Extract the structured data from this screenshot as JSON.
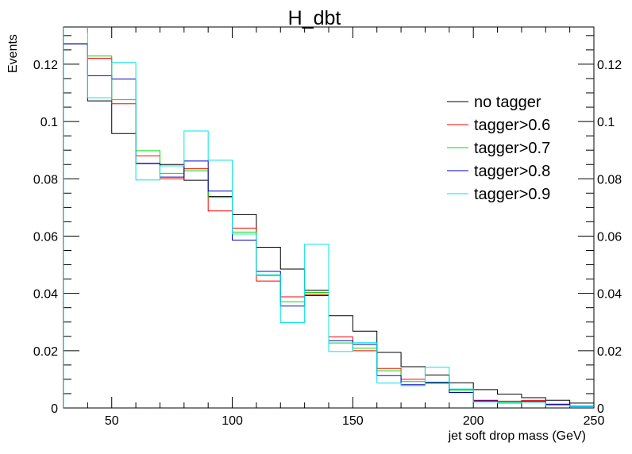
{
  "chart_data": {
    "type": "histogram",
    "title": "H_dbt",
    "xlabel": "jet soft drop mass (GeV)",
    "ylabel": "Events",
    "xlim": [
      30,
      250
    ],
    "ylim": [
      0,
      0.133
    ],
    "x_ticks": [
      50,
      100,
      150,
      200,
      250
    ],
    "y_ticks": [
      0,
      0.02,
      0.04,
      0.06,
      0.08,
      0.1,
      0.12
    ],
    "y_tick_labels": [
      "0",
      "0.02",
      "0.04",
      "0.06",
      "0.08",
      "0.1",
      "0.12"
    ],
    "bin_edges": [
      30,
      40,
      50,
      60,
      70,
      80,
      90,
      100,
      110,
      120,
      130,
      140,
      150,
      160,
      170,
      180,
      190,
      200,
      210,
      220,
      230,
      240,
      250
    ],
    "grid": false,
    "legend_position": "right",
    "series": [
      {
        "name": "no tagger",
        "color": "#000000",
        "values": [
          0.1271,
          0.1072,
          0.0958,
          0.0853,
          0.085,
          0.0795,
          0.0738,
          0.0675,
          0.0561,
          0.0485,
          0.0411,
          0.0322,
          0.0268,
          0.0194,
          0.0144,
          0.0115,
          0.0088,
          0.0064,
          0.0048,
          0.0036,
          0.0027,
          0.0017
        ]
      },
      {
        "name": "tagger>0.6",
        "color": "#ff0000",
        "values": [
          0.1271,
          0.1221,
          0.1062,
          0.088,
          0.08,
          0.0835,
          0.0688,
          0.0628,
          0.0443,
          0.0388,
          0.0396,
          0.0248,
          0.02,
          0.0138,
          0.01,
          0.0086,
          0.0065,
          0.0027,
          0.0024,
          0.0026,
          0.0012,
          0.0005
        ]
      },
      {
        "name": "tagger>0.7",
        "color": "#00dd00",
        "values": [
          0.1271,
          0.1229,
          0.1076,
          0.0898,
          0.0819,
          0.0828,
          0.0735,
          0.0614,
          0.0462,
          0.0371,
          0.0403,
          0.0227,
          0.0209,
          0.013,
          0.0092,
          0.0087,
          0.0061,
          0.0022,
          0.0021,
          0.0022,
          0.001,
          0.0004
        ]
      },
      {
        "name": "tagger>0.8",
        "color": "#0000cc",
        "values": [
          0.1271,
          0.116,
          0.1148,
          0.0854,
          0.0806,
          0.0862,
          0.0757,
          0.0586,
          0.0477,
          0.0356,
          0.0392,
          0.0235,
          0.0222,
          0.0113,
          0.0081,
          0.009,
          0.0054,
          0.0025,
          0.0017,
          0.0023,
          0.0013,
          0.0006
        ]
      },
      {
        "name": "tagger>0.9",
        "color": "#00e5e5",
        "values": [
          0.1336,
          0.1083,
          0.1206,
          0.0796,
          0.0845,
          0.0967,
          0.0865,
          0.0607,
          0.0465,
          0.0298,
          0.0572,
          0.0197,
          0.0228,
          0.0087,
          0.0078,
          0.0142,
          0.0066,
          0.0021,
          0.0017,
          0.002,
          0.0009,
          0.0004
        ]
      }
    ]
  }
}
